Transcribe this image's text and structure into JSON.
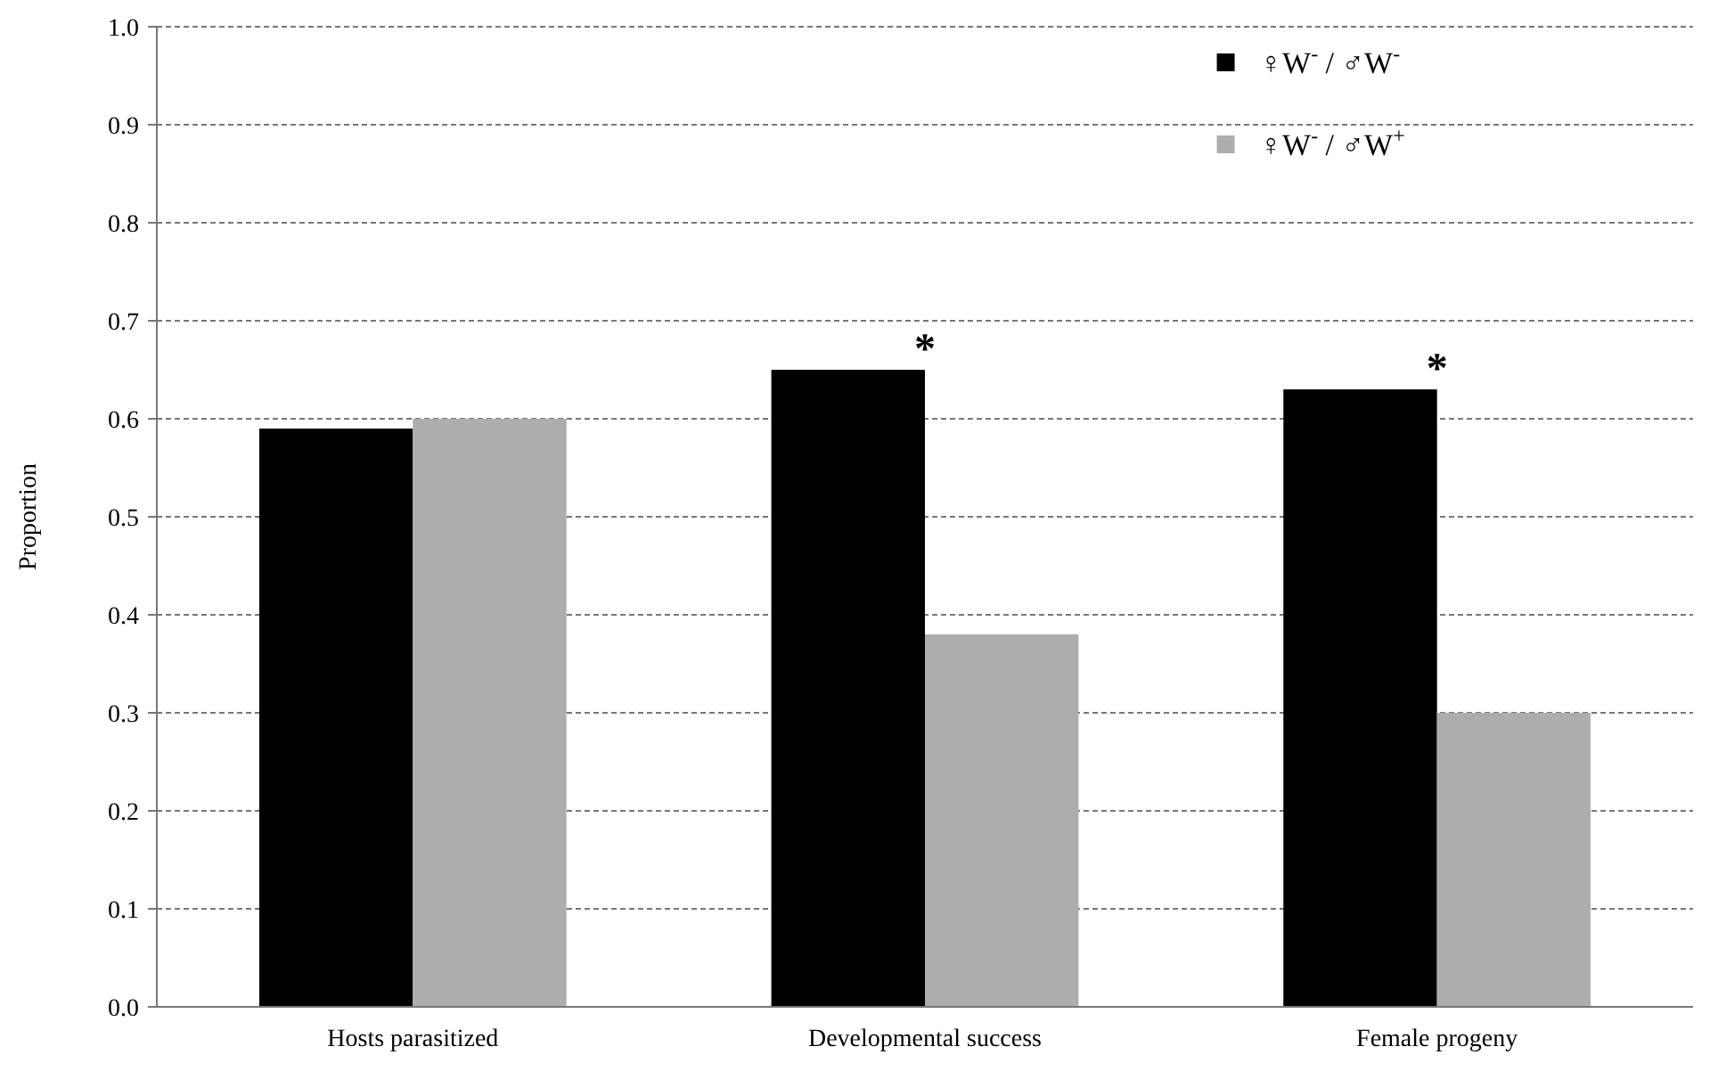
{
  "chart_data": {
    "type": "bar",
    "ylabel": "Proportion",
    "categories": [
      "Hosts parasitized",
      "Developmental success",
      "Female progeny"
    ],
    "series": [
      {
        "name": "♀W$^{-}$ / ♂W$^{-}$",
        "color": "#000000",
        "values": [
          0.59,
          0.65,
          0.63
        ]
      },
      {
        "name": "♀W$^{-}$ / ♂W$^{+}$",
        "color": "#adadad",
        "values": [
          0.6,
          0.38,
          0.3
        ]
      }
    ],
    "ylim": [
      0,
      1
    ],
    "yticks": [
      {
        "value": 0,
        "label": "0.0"
      },
      {
        "value": 0.1,
        "label": "0.1"
      },
      {
        "value": 0.2,
        "label": "0.2"
      },
      {
        "value": 0.3,
        "label": "0.3"
      },
      {
        "value": 0.4,
        "label": "0.4"
      },
      {
        "value": 0.5,
        "label": "0.5"
      },
      {
        "value": 0.6,
        "label": "0.6"
      },
      {
        "value": 0.7,
        "label": "0.7"
      },
      {
        "value": 0.8,
        "label": "0.8"
      },
      {
        "value": 0.9,
        "label": "0.9"
      },
      {
        "value": 1,
        "label": "1.0"
      }
    ],
    "grid": "y",
    "legend": "top right",
    "annotations": [
      {
        "text": "*",
        "x": "Developmental success",
        "y": 0.65
      },
      {
        "text": "*",
        "x": "Female progeny",
        "y": 0.63
      }
    ]
  }
}
